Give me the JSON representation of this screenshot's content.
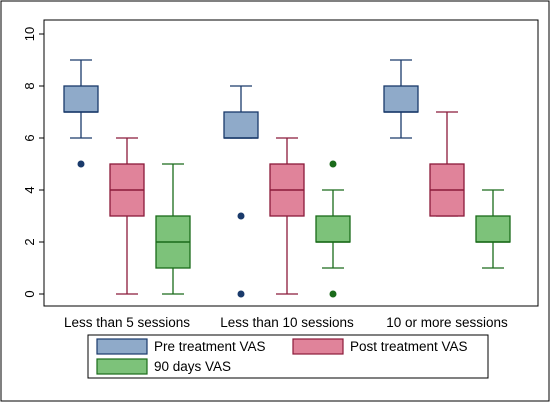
{
  "chart_data": {
    "type": "box",
    "title": "",
    "xlabel": "",
    "ylabel": "",
    "ylim": [
      0,
      10
    ],
    "yticks": [
      0,
      2,
      4,
      6,
      8,
      10
    ],
    "grid": false,
    "legend_placement": "bottom",
    "categories": [
      "Less than 5 sessions",
      "Less than 10 sessions",
      "10 or more sessions"
    ],
    "series": [
      {
        "name": "Pre treatment VAS",
        "fill": "#8faac9",
        "stroke": "#1a3a6b",
        "boxes": [
          {
            "whisker_low": 6,
            "q1": 7,
            "median": 7,
            "q3": 8,
            "whisker_high": 9,
            "outliers": [
              5
            ]
          },
          {
            "whisker_low": 6,
            "q1": 6,
            "median": 6,
            "q3": 7,
            "whisker_high": 8,
            "outliers": [
              3,
              0
            ]
          },
          {
            "whisker_low": 6,
            "q1": 7,
            "median": 7,
            "q3": 8,
            "whisker_high": 9,
            "outliers": []
          }
        ]
      },
      {
        "name": "Post treatment VAS",
        "fill": "#e0839a",
        "stroke": "#8b1a3a",
        "boxes": [
          {
            "whisker_low": 0,
            "q1": 3,
            "median": 4,
            "q3": 5,
            "whisker_high": 6,
            "outliers": []
          },
          {
            "whisker_low": 0,
            "q1": 3,
            "median": 4,
            "q3": 5,
            "whisker_high": 6,
            "outliers": []
          },
          {
            "whisker_low": 3,
            "q1": 3,
            "median": 4,
            "q3": 5,
            "whisker_high": 7,
            "outliers": []
          }
        ]
      },
      {
        "name": "90 days VAS",
        "fill": "#7dc27a",
        "stroke": "#1a6b1a",
        "boxes": [
          {
            "whisker_low": 0,
            "q1": 1,
            "median": 2,
            "q3": 3,
            "whisker_high": 5,
            "outliers": []
          },
          {
            "whisker_low": 1,
            "q1": 2,
            "median": 2,
            "q3": 3,
            "whisker_high": 4,
            "outliers": [
              5,
              0
            ]
          },
          {
            "whisker_low": 1,
            "q1": 2,
            "median": 2,
            "q3": 3,
            "whisker_high": 4,
            "outliers": []
          }
        ]
      }
    ]
  }
}
